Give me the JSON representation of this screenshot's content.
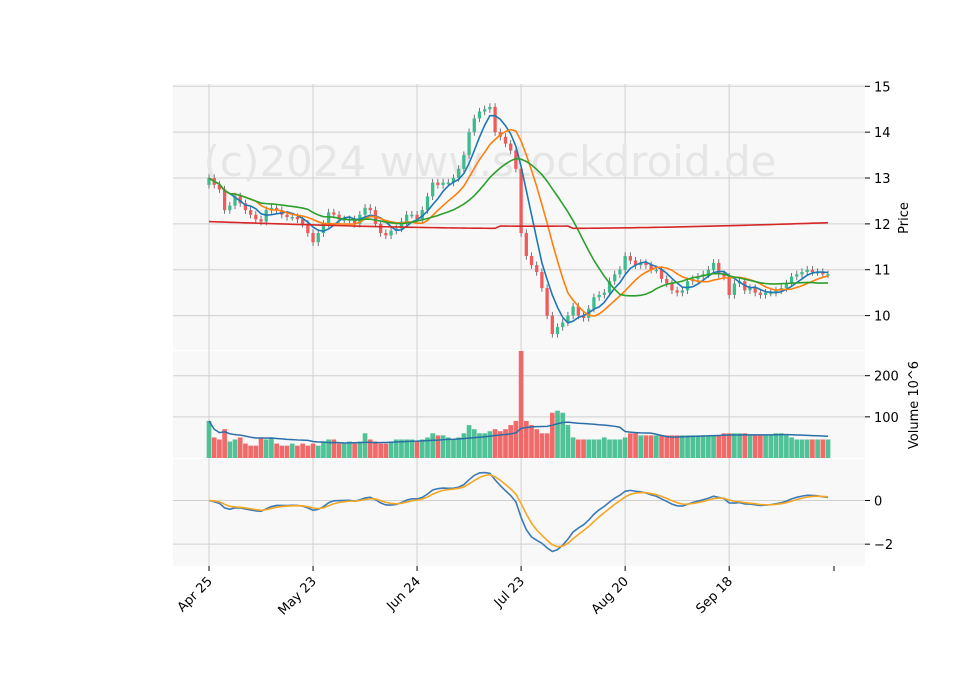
{
  "watermark": "(c)2024 www.stockdroid.de",
  "colors": {
    "up": "#26a69a",
    "upCandle": "#3cbc8c",
    "down": "#ef5350",
    "downCandle": "#f05a5a",
    "ma_short": "#1f77b4",
    "ma_mid": "#ff7f0e",
    "ma_long": "#2ca02c",
    "ma_200": "#d62728",
    "macd": "#3a7ab8",
    "signal": "#f5a623",
    "volume_ma": "#2b6fa8",
    "panel_bg": "#f8f8f8",
    "grid": "#d0d0d0"
  },
  "chart_data": [
    {
      "type": "candlestick",
      "panel": "price",
      "ylabel": "Price",
      "ylim": [
        9.25,
        15.05
      ],
      "yticks": [
        10,
        11,
        12,
        13,
        14,
        15
      ],
      "xticks": [
        {
          "label": "Apr 25",
          "i": 0
        },
        {
          "label": "May 23",
          "i": 20
        },
        {
          "label": "Jun 24",
          "i": 40
        },
        {
          "label": "Jul 23",
          "i": 60
        },
        {
          "label": "Aug 20",
          "i": 80
        },
        {
          "label": "Sep 18",
          "i": 100
        }
      ],
      "n_bars": 120,
      "closes": [
        13.0,
        12.85,
        12.75,
        12.3,
        12.4,
        12.6,
        12.45,
        12.3,
        12.2,
        12.1,
        12.05,
        12.3,
        12.35,
        12.3,
        12.2,
        12.15,
        12.15,
        12.1,
        12.0,
        11.8,
        11.6,
        11.8,
        12.0,
        12.25,
        12.2,
        12.1,
        12.1,
        12.1,
        12.0,
        12.2,
        12.35,
        12.3,
        12.0,
        11.8,
        11.75,
        11.85,
        11.9,
        12.05,
        12.2,
        12.2,
        12.1,
        12.3,
        12.6,
        12.9,
        12.85,
        12.9,
        12.9,
        13.0,
        13.2,
        13.5,
        14.0,
        14.3,
        14.45,
        14.5,
        14.55,
        14.0,
        13.9,
        13.75,
        13.6,
        13.2,
        11.8,
        11.3,
        11.1,
        10.95,
        10.6,
        10.0,
        9.6,
        9.75,
        9.85,
        10.0,
        10.2,
        10.0,
        9.95,
        10.15,
        10.4,
        10.45,
        10.5,
        10.75,
        10.9,
        11.0,
        11.3,
        11.2,
        11.1,
        11.15,
        11.1,
        11.0,
        11.0,
        10.8,
        10.7,
        10.55,
        10.5,
        10.55,
        10.75,
        10.8,
        10.85,
        10.9,
        11.0,
        11.15,
        10.9,
        10.85,
        10.45,
        10.7,
        10.75,
        10.55,
        10.6,
        10.5,
        10.45,
        10.5,
        10.5,
        10.55,
        10.6,
        10.7,
        10.85,
        10.9,
        10.95,
        11.0,
        10.95,
        10.95,
        10.9,
        10.9
      ],
      "volumes": [
        90,
        50,
        45,
        70,
        40,
        45,
        50,
        35,
        30,
        30,
        50,
        45,
        50,
        35,
        30,
        30,
        35,
        30,
        35,
        30,
        35,
        30,
        40,
        45,
        45,
        35,
        35,
        40,
        35,
        40,
        60,
        45,
        40,
        35,
        35,
        40,
        45,
        45,
        45,
        45,
        40,
        45,
        50,
        60,
        55,
        55,
        50,
        45,
        50,
        60,
        80,
        70,
        60,
        60,
        65,
        70,
        65,
        70,
        80,
        90,
        260,
        90,
        80,
        70,
        60,
        60,
        110,
        115,
        110,
        80,
        50,
        45,
        45,
        45,
        45,
        45,
        50,
        45,
        45,
        45,
        50,
        60,
        60,
        55,
        55,
        55,
        55,
        55,
        55,
        55,
        55,
        55,
        55,
        55,
        55,
        55,
        55,
        55,
        55,
        60,
        60,
        60,
        60,
        60,
        55,
        55,
        55,
        55,
        55,
        60,
        60,
        55,
        50,
        45,
        45,
        45,
        45,
        45,
        45,
        45
      ],
      "volume_ylim": [
        0,
        260
      ],
      "volume_yticks": [
        100,
        200
      ],
      "volume_ylabel": "Volume  10^6"
    },
    {
      "type": "line",
      "panel": "macd",
      "ylim": [
        -3.0,
        1.9
      ],
      "yticks": [
        -2,
        0
      ],
      "series": [
        {
          "key": "macd",
          "values": []
        },
        {
          "key": "signal",
          "values": []
        }
      ]
    }
  ]
}
